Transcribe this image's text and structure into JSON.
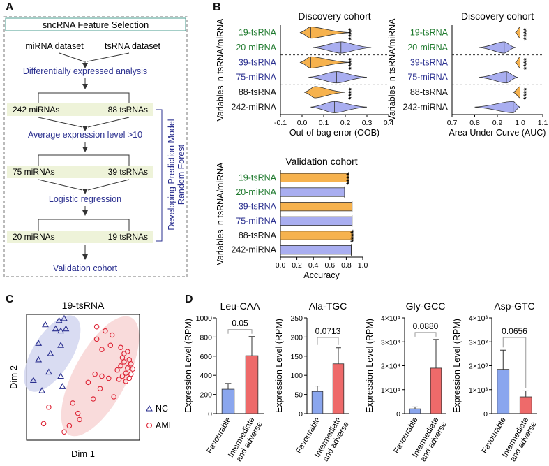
{
  "colors": {
    "green": "#1f7a2e",
    "blue": "#2a2f8f",
    "orange": "#f6b24e",
    "violet": "#a9aef0",
    "red": "#ee6a6a",
    "barblue": "#8aa6ee",
    "flowbg": "#eef3d9",
    "ellipseBlue": "#cfd3ef",
    "ellipseRed": "#f7d2d2"
  },
  "panels": {
    "a": "A",
    "b": "B",
    "c": "C",
    "d": "D"
  },
  "flow": {
    "title": "sncRNA Feature Selection",
    "mirna_dataset": "miRNA dataset",
    "tsrna_dataset": "tsRNA dataset",
    "step1": "Differentially expressed analysis",
    "mirna_242": "242 miRNAs",
    "tsrna_88": "88 tsRNAs",
    "step2": "Average expression level >10",
    "mirna_75": "75 miRNAs",
    "tsrna_39": "39 tsRNAs",
    "step3": "Logistic regression",
    "mirna_20": "20 miRNAs",
    "tsrna_19": "19 tsRNAs",
    "step4": "Validation cohort",
    "side1": "Developing Prediction Model",
    "side2": "Random Forest"
  },
  "chart_data": [
    {
      "id": "oob",
      "type": "violin",
      "title": "Discovery cohort",
      "xlabel": "Out-of-bag error (OOB)",
      "ylabel": "Variables in tsRNA/miRNA",
      "xlim": [
        -0.1,
        0.4
      ],
      "xticks": [
        "-0.1",
        "0.0",
        "0.1",
        "0.2",
        "0.3",
        "0.4"
      ],
      "categories": [
        "19-tsRNA",
        "20-miRNA",
        "39-tsRNA",
        "75-miRNA",
        "88-tsRNA",
        "242-miRNA"
      ],
      "medians": [
        0.04,
        0.18,
        0.04,
        0.16,
        0.06,
        0.15
      ],
      "ranges": [
        [
          -0.01,
          0.22
        ],
        [
          0.05,
          0.32
        ],
        [
          -0.01,
          0.22
        ],
        [
          0.03,
          0.3
        ],
        [
          0.01,
          0.2
        ],
        [
          0.04,
          0.3
        ]
      ],
      "significance": [
        "****",
        "",
        "****",
        "",
        "****",
        ""
      ]
    },
    {
      "id": "auc",
      "type": "violin",
      "title": "Discovery cohort",
      "xlabel": "Area Under Curve (AUC)",
      "ylabel": "Variables in tsRNA/miRNA",
      "xlim": [
        0.7,
        1.1
      ],
      "xticks": [
        "0.7",
        "0.8",
        "0.9",
        "1.0",
        "1.1"
      ],
      "categories": [
        "19-tsRNA",
        "20-miRNA",
        "39-tsRNA",
        "75-miRNA",
        "88-tsRNA",
        "242-miRNA"
      ],
      "medians": [
        1.0,
        0.93,
        1.0,
        0.94,
        1.0,
        0.97
      ],
      "ranges": [
        [
          0.98,
          1.0
        ],
        [
          0.82,
          0.98
        ],
        [
          0.98,
          1.0
        ],
        [
          0.82,
          0.99
        ],
        [
          0.97,
          1.0
        ],
        [
          0.8,
          1.0
        ]
      ],
      "significance": [
        "****",
        "",
        "****",
        "",
        "****",
        ""
      ]
    },
    {
      "id": "acc",
      "type": "bar",
      "title": "Validation cohort",
      "xlabel": "Accuracy",
      "ylabel": "Variables in tsRNA/miRNA",
      "xlim": [
        0,
        1.0
      ],
      "xticks": [
        "0.0",
        "0.2",
        "0.4",
        "0.6",
        "0.8",
        "1.0"
      ],
      "categories": [
        "19-tsRNA",
        "20-miRNA",
        "39-tsRNA",
        "75-miRNA",
        "88-tsRNA",
        "242-miRNA"
      ],
      "values": [
        0.83,
        0.78,
        0.87,
        0.87,
        0.88,
        0.86
      ],
      "significance": [
        "****",
        "",
        "",
        "",
        "****",
        ""
      ]
    },
    {
      "id": "pca",
      "type": "scatter",
      "title": "19-tsRNA",
      "xlabel": "Dim 1",
      "ylabel": "Dim 2",
      "legend": [
        "NC",
        "AML"
      ],
      "NC": [
        [
          -2.2,
          2.6
        ],
        [
          -1.4,
          2.8
        ],
        [
          -1.1,
          2.9
        ],
        [
          -1.6,
          2.4
        ],
        [
          -1.3,
          2.3
        ],
        [
          -1.0,
          2.4
        ],
        [
          -2.6,
          1.7
        ],
        [
          -1.3,
          1.6
        ],
        [
          -1.9,
          1.2
        ],
        [
          -2.6,
          0.9
        ],
        [
          -2.0,
          0.3
        ],
        [
          -1.3,
          0.1
        ],
        [
          -2.9,
          -0.1
        ],
        [
          -2.4,
          -0.6
        ],
        [
          -1.2,
          -0.4
        ]
      ],
      "AML": [
        [
          0.8,
          2.5
        ],
        [
          1.3,
          2.3
        ],
        [
          1.7,
          2.1
        ],
        [
          0.8,
          1.9
        ],
        [
          1.6,
          1.6
        ],
        [
          2.2,
          1.5
        ],
        [
          1.1,
          1.4
        ],
        [
          2.4,
          1.2
        ],
        [
          2.6,
          1.3
        ],
        [
          2.3,
          1.0
        ],
        [
          2.7,
          0.9
        ],
        [
          2.4,
          0.8
        ],
        [
          2.8,
          0.7
        ],
        [
          2.2,
          0.6
        ],
        [
          2.6,
          0.5
        ],
        [
          2.9,
          0.45
        ],
        [
          2.0,
          0.4
        ],
        [
          2.5,
          0.25
        ],
        [
          2.8,
          0.2
        ],
        [
          2.3,
          0.1
        ],
        [
          2.7,
          0.0
        ],
        [
          2.1,
          -0.05
        ],
        [
          2.5,
          -0.15
        ],
        [
          1.5,
          0.0
        ],
        [
          0.7,
          0.2
        ],
        [
          1.1,
          0.1
        ],
        [
          1.0,
          -0.5
        ],
        [
          0.3,
          -0.2
        ],
        [
          0.6,
          -1.0
        ],
        [
          -0.6,
          -1.2
        ],
        [
          -0.3,
          -1.7
        ],
        [
          -2.0,
          -1.4
        ],
        [
          -0.2,
          -2.0
        ],
        [
          -2.3,
          -2.2
        ],
        [
          -0.8,
          -2.3
        ],
        [
          -1.1,
          -2.6
        ],
        [
          1.8,
          -0.9
        ]
      ]
    },
    {
      "id": "leu",
      "type": "bar",
      "title": "Leu-CAA",
      "ylabel": "Expression Level (RPM)",
      "ylim": [
        0,
        1000
      ],
      "yticks": [
        "0",
        "200",
        "400",
        "600",
        "800",
        "1000"
      ],
      "categories": [
        "Favourable",
        "Intermediate and adverse"
      ],
      "values": [
        255,
        605
      ],
      "errors": [
        60,
        200
      ],
      "pvalue": "0.05"
    },
    {
      "id": "ala",
      "type": "bar",
      "title": "Ala-TGC",
      "ylabel": "Expression Level (RPM)",
      "ylim": [
        0,
        250
      ],
      "yticks": [
        "0",
        "50",
        "100",
        "150",
        "200",
        "250"
      ],
      "categories": [
        "Favourable",
        "Intermediate and adverse"
      ],
      "values": [
        58,
        130
      ],
      "errors": [
        14,
        42
      ],
      "pvalue": "0.0713"
    },
    {
      "id": "gly",
      "type": "bar",
      "title": "Gly-GCC",
      "ylabel": "Expression Level (RPM)",
      "ylim": [
        0,
        40000
      ],
      "yticks": [
        "0",
        "1×10⁴",
        "2×10⁴",
        "3×10⁴",
        "4×10⁴"
      ],
      "categories": [
        "Favourable",
        "Intermediate and adverse"
      ],
      "values": [
        2000,
        19000
      ],
      "errors": [
        800,
        12000
      ],
      "pvalue": "0.0880"
    },
    {
      "id": "asp",
      "type": "bar",
      "title": "Asp-GTC",
      "ylabel": "Expression Level (RPM)",
      "ylim": [
        0,
        4000
      ],
      "yticks": [
        "0",
        "1×10³",
        "2×10³",
        "3×10³",
        "4×10³"
      ],
      "categories": [
        "Favourable",
        "Intermediate and adverse"
      ],
      "values": [
        1850,
        700
      ],
      "errors": [
        800,
        250
      ],
      "pvalue": "0.0656"
    }
  ]
}
